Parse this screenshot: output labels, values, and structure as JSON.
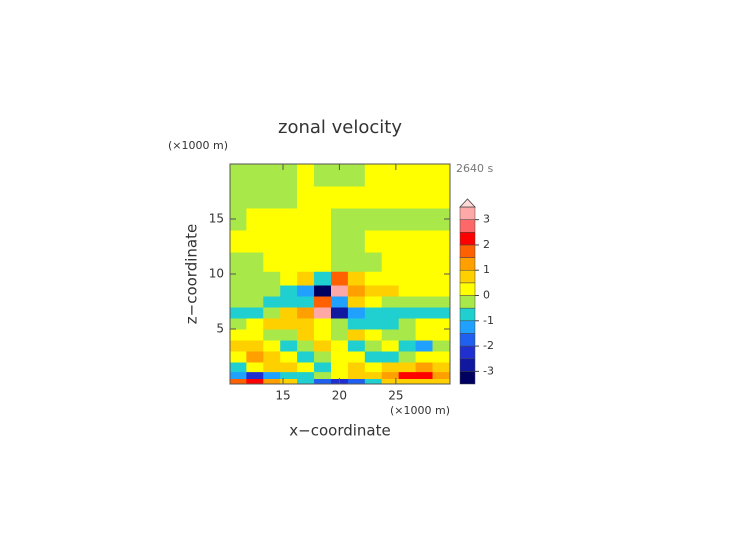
{
  "chart_data": {
    "type": "contour",
    "title": "zonal velocity",
    "time_label": "2640 s",
    "x_unit": "(×1000 m)",
    "y_unit": "(×1000 m)",
    "xlabel": "x−coordinate",
    "ylabel": "z−coordinate",
    "xlim": [
      10.3,
      29.8
    ],
    "ylim": [
      0,
      20
    ],
    "xticks": [
      15,
      20,
      25
    ],
    "yticks": [
      5,
      10,
      15
    ],
    "x": [
      11,
      12.5,
      14,
      15.5,
      17,
      18.5,
      20,
      21.5,
      23,
      24.5,
      26,
      27.5,
      29
    ],
    "y": [
      0.25,
      0.75,
      1.5,
      2.5,
      3.5,
      4.5,
      5.5,
      6.5,
      7.5,
      8.5,
      9.5,
      11,
      13,
      15,
      17,
      19
    ],
    "values": [
      [
        1.5,
        2.2,
        1.2,
        0.8,
        -1.0,
        -1.6,
        -2.2,
        -1.8,
        -0.6,
        0.5,
        0.8,
        0.8,
        0.8
      ],
      [
        -1.5,
        -2.5,
        -1.2,
        -0.7,
        -0.6,
        -0.3,
        0.3,
        0.6,
        0.8,
        1.2,
        2.3,
        2.0,
        1.0
      ],
      [
        -0.8,
        0.3,
        0.6,
        0.7,
        0.4,
        -0.8,
        0.2,
        0.7,
        0.3,
        0.6,
        0.8,
        1.0,
        0.6
      ],
      [
        0.4,
        1.0,
        0.8,
        0.3,
        -0.8,
        -0.3,
        0.4,
        0.3,
        -0.6,
        -1.0,
        -0.5,
        0.3,
        0.3
      ],
      [
        0.8,
        0.7,
        0.3,
        -0.7,
        -0.3,
        0.7,
        0.2,
        -0.7,
        -0.3,
        0.4,
        -0.8,
        -1.3,
        -0.3
      ],
      [
        0.3,
        0.2,
        -0.3,
        -0.4,
        0.6,
        0.2,
        -0.2,
        0.6,
        0.3,
        -0.4,
        -0.3,
        0.2,
        0.3
      ],
      [
        -0.2,
        0.2,
        0.6,
        0.8,
        0.8,
        0.2,
        -0.2,
        -0.6,
        -0.8,
        -0.6,
        -0.2,
        0.2,
        0.2
      ],
      [
        -0.6,
        -0.7,
        -0.4,
        0.6,
        1.3,
        3.0,
        -3.0,
        -1.2,
        -0.6,
        -0.6,
        -0.6,
        -0.7,
        -0.6
      ],
      [
        -0.2,
        -0.3,
        -0.8,
        -1.0,
        -0.7,
        1.5,
        -1.5,
        0.5,
        0.3,
        -0.3,
        -0.2,
        -0.2,
        -0.2
      ],
      [
        -0.2,
        -0.3,
        -0.5,
        -0.8,
        -1.2,
        -3.2,
        3.2,
        1.2,
        0.8,
        0.5,
        0.3,
        0.2,
        0.2
      ],
      [
        -0.2,
        -0.2,
        -0.2,
        0.3,
        0.7,
        -0.8,
        1.5,
        0.6,
        0.2,
        0.2,
        0.2,
        0.2,
        0.2
      ],
      [
        -0.2,
        -0.2,
        0.2,
        0.2,
        0.2,
        0.2,
        -0.2,
        -0.2,
        -0.2,
        0.2,
        0.2,
        0.2,
        0.2
      ],
      [
        0.2,
        0.2,
        0.2,
        0.2,
        0.2,
        0.2,
        -0.2,
        -0.2,
        0.2,
        0.2,
        0.2,
        0.2,
        0.2
      ],
      [
        -0.2,
        0.2,
        0.2,
        0.2,
        0.2,
        0.2,
        -0.2,
        -0.2,
        -0.2,
        -0.2,
        -0.2,
        -0.2,
        -0.2
      ],
      [
        -0.2,
        -0.2,
        -0.2,
        -0.2,
        0.2,
        0.2,
        0.2,
        0.2,
        0.2,
        0.2,
        0.2,
        0.2,
        0.2
      ],
      [
        -0.2,
        -0.2,
        -0.2,
        -0.2,
        0.2,
        -0.1,
        -0.1,
        -0.1,
        0.2,
        0.2,
        0.2,
        0.2,
        0.2
      ]
    ],
    "levels": [
      -3.5,
      -3,
      -2.5,
      -2,
      -1.5,
      -1,
      -0.5,
      0,
      0.5,
      1,
      1.5,
      2,
      2.5,
      3,
      3.5
    ],
    "colors": [
      "#000060",
      "#1018a0",
      "#2030d0",
      "#2060f0",
      "#20a0ff",
      "#20d0d0",
      "#a8e848",
      "#ffff00",
      "#ffd000",
      "#ffa000",
      "#ff6000",
      "#ff0000",
      "#ff6868",
      "#ffa8a8",
      "#ffd8d8"
    ],
    "cbar_ticks": [
      -3,
      -2,
      -1,
      0,
      1,
      2,
      3
    ]
  }
}
